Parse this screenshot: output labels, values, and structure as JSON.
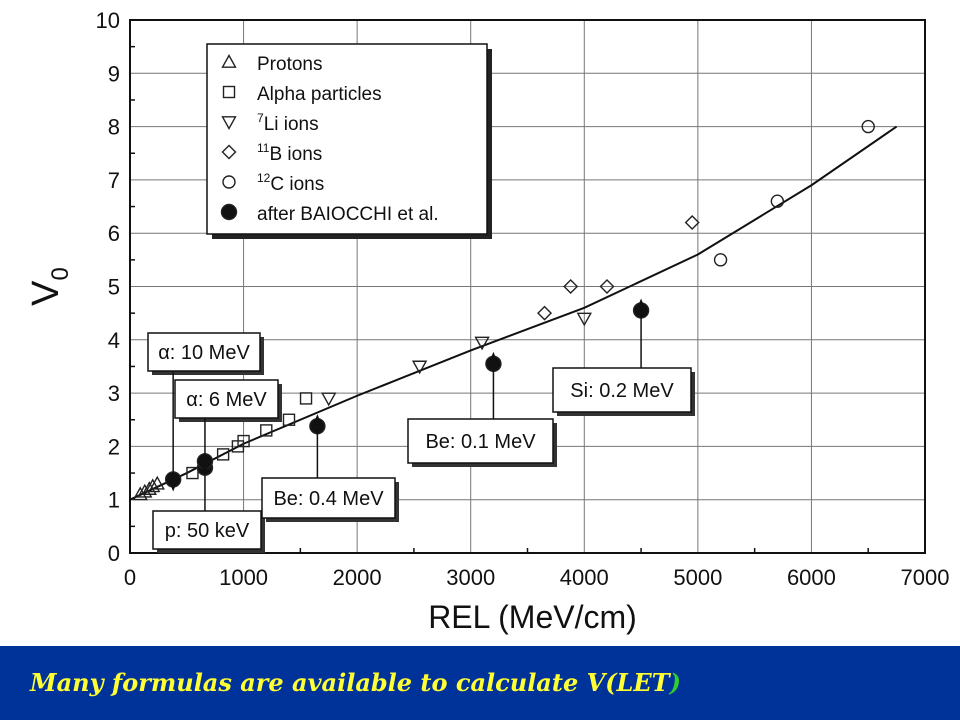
{
  "chart_data": {
    "type": "scatter",
    "xlabel": "REL   (MeV/cm)",
    "ylabel": "V",
    "ylabel_sub": "0",
    "xlim": [
      0,
      7000
    ],
    "ylim": [
      0,
      10
    ],
    "xticks": [
      0,
      1000,
      2000,
      3000,
      4000,
      5000,
      6000,
      7000
    ],
    "yticks": [
      0,
      1,
      2,
      3,
      4,
      5,
      6,
      7,
      8,
      9,
      10
    ],
    "grid": true,
    "legend_position": "top-left",
    "series": [
      {
        "name": "Protons",
        "marker": "triangle-up",
        "points": [
          [
            90,
            1.1
          ],
          [
            130,
            1.15
          ],
          [
            170,
            1.2
          ],
          [
            200,
            1.25
          ],
          [
            240,
            1.3
          ]
        ]
      },
      {
        "name": "Alpha particles",
        "marker": "square",
        "points": [
          [
            550,
            1.5
          ],
          [
            820,
            1.85
          ],
          [
            950,
            2.0
          ],
          [
            1000,
            2.1
          ],
          [
            1200,
            2.3
          ],
          [
            1400,
            2.5
          ],
          [
            1550,
            2.9
          ]
        ]
      },
      {
        "name": "Li ions",
        "superscript": "7",
        "marker": "triangle-down",
        "points": [
          [
            1750,
            2.9
          ],
          [
            2550,
            3.5
          ],
          [
            3100,
            3.95
          ],
          [
            4000,
            4.4
          ]
        ]
      },
      {
        "name": "B ions",
        "superscript": "11",
        "marker": "diamond",
        "points": [
          [
            3650,
            4.5
          ],
          [
            3880,
            5.0
          ],
          [
            4200,
            5.0
          ],
          [
            4950,
            6.2
          ]
        ]
      },
      {
        "name": "C ions",
        "superscript": "12",
        "marker": "circle-open",
        "points": [
          [
            5200,
            5.5
          ],
          [
            5700,
            6.6
          ],
          [
            6500,
            8.0
          ]
        ]
      },
      {
        "name": "after BAIOCCHI et al.",
        "marker": "circle-filled",
        "points": [
          [
            380,
            1.38
          ],
          [
            660,
            1.6
          ],
          [
            660,
            1.72
          ],
          [
            1650,
            2.38
          ],
          [
            3200,
            3.55
          ],
          [
            4500,
            4.55
          ]
        ]
      }
    ],
    "fit_curve": {
      "points": [
        [
          0,
          1.0
        ],
        [
          500,
          1.5
        ],
        [
          1000,
          2.05
        ],
        [
          2000,
          2.95
        ],
        [
          3000,
          3.8
        ],
        [
          4000,
          4.6
        ],
        [
          5000,
          5.6
        ],
        [
          6000,
          6.9
        ],
        [
          6750,
          8.0
        ]
      ]
    },
    "annotations": [
      {
        "text": "α: 10 MeV",
        "target": [
          380,
          1.38
        ]
      },
      {
        "text": "α: 6 MeV",
        "target": [
          660,
          1.72
        ]
      },
      {
        "text": "p: 50 keV",
        "target": [
          660,
          1.6
        ]
      },
      {
        "text": "Be: 0.4 MeV",
        "target": [
          1650,
          2.38
        ]
      },
      {
        "text": "Be: 0.1 MeV",
        "target": [
          3200,
          3.55
        ]
      },
      {
        "text": "Si: 0.2 MeV",
        "target": [
          4500,
          4.55
        ]
      }
    ]
  },
  "caption": {
    "text": "Many formulas are available to calculate V(LET",
    "closing": ")",
    "color": "#ffff33",
    "closing_color": "#33cc33",
    "background": "#003399"
  }
}
